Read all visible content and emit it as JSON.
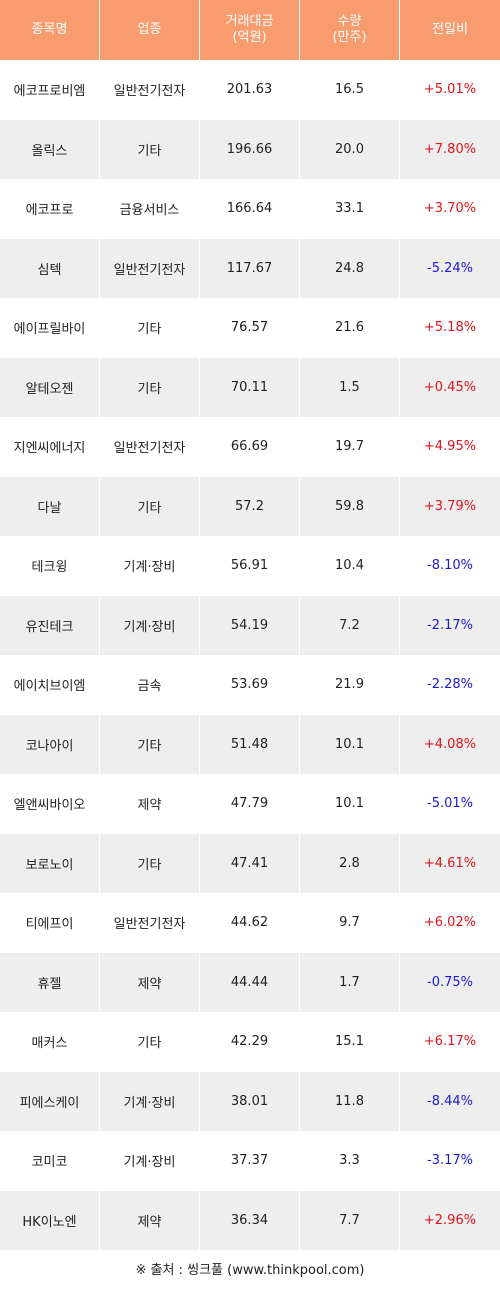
{
  "colors": {
    "header_bg": "#f89c6f",
    "header_text": "#ffffff",
    "row_alt": "#eeeeee",
    "up": "#e0141c",
    "down": "#1a1ad6"
  },
  "headers": {
    "name": "종목명",
    "sector": "업종",
    "amount_line1": "거래대금",
    "amount_line2": "(억원)",
    "volume_line1": "수량",
    "volume_line2": "(만주)",
    "change": "전일비"
  },
  "rows": [
    {
      "name": "에코프로비엠",
      "sector": "일반전기전자",
      "amount": "201.63",
      "volume": "16.5",
      "change": "+5.01%",
      "direction": "up"
    },
    {
      "name": "올릭스",
      "sector": "기타",
      "amount": "196.66",
      "volume": "20.0",
      "change": "+7.80%",
      "direction": "up"
    },
    {
      "name": "에코프로",
      "sector": "금융서비스",
      "amount": "166.64",
      "volume": "33.1",
      "change": "+3.70%",
      "direction": "up"
    },
    {
      "name": "심텍",
      "sector": "일반전기전자",
      "amount": "117.67",
      "volume": "24.8",
      "change": "-5.24%",
      "direction": "down"
    },
    {
      "name": "에이프릴바이",
      "sector": "기타",
      "amount": "76.57",
      "volume": "21.6",
      "change": "+5.18%",
      "direction": "up"
    },
    {
      "name": "알테오젠",
      "sector": "기타",
      "amount": "70.11",
      "volume": "1.5",
      "change": "+0.45%",
      "direction": "up"
    },
    {
      "name": "지엔씨에너지",
      "sector": "일반전기전자",
      "amount": "66.69",
      "volume": "19.7",
      "change": "+4.95%",
      "direction": "up"
    },
    {
      "name": "다날",
      "sector": "기타",
      "amount": "57.2",
      "volume": "59.8",
      "change": "+3.79%",
      "direction": "up"
    },
    {
      "name": "테크윙",
      "sector": "기계·장비",
      "amount": "56.91",
      "volume": "10.4",
      "change": "-8.10%",
      "direction": "down"
    },
    {
      "name": "유진테크",
      "sector": "기계·장비",
      "amount": "54.19",
      "volume": "7.2",
      "change": "-2.17%",
      "direction": "down"
    },
    {
      "name": "에이치브이엠",
      "sector": "금속",
      "amount": "53.69",
      "volume": "21.9",
      "change": "-2.28%",
      "direction": "down"
    },
    {
      "name": "코나아이",
      "sector": "기타",
      "amount": "51.48",
      "volume": "10.1",
      "change": "+4.08%",
      "direction": "up"
    },
    {
      "name": "엘앤씨바이오",
      "sector": "제약",
      "amount": "47.79",
      "volume": "10.1",
      "change": "-5.01%",
      "direction": "down"
    },
    {
      "name": "보로노이",
      "sector": "기타",
      "amount": "47.41",
      "volume": "2.8",
      "change": "+4.61%",
      "direction": "up"
    },
    {
      "name": "티에프이",
      "sector": "일반전기전자",
      "amount": "44.62",
      "volume": "9.7",
      "change": "+6.02%",
      "direction": "up"
    },
    {
      "name": "휴젤",
      "sector": "제약",
      "amount": "44.44",
      "volume": "1.7",
      "change": "-0.75%",
      "direction": "down"
    },
    {
      "name": "매커스",
      "sector": "기타",
      "amount": "42.29",
      "volume": "15.1",
      "change": "+6.17%",
      "direction": "up"
    },
    {
      "name": "피에스케이",
      "sector": "기계·장비",
      "amount": "38.01",
      "volume": "11.8",
      "change": "-8.44%",
      "direction": "down"
    },
    {
      "name": "코미코",
      "sector": "기계·장비",
      "amount": "37.37",
      "volume": "3.3",
      "change": "-3.17%",
      "direction": "down"
    },
    {
      "name": "HK이노엔",
      "sector": "제약",
      "amount": "36.34",
      "volume": "7.7",
      "change": "+2.96%",
      "direction": "up"
    }
  ],
  "source": "※ 출처 : 씽크풀 (www.thinkpool.com)"
}
